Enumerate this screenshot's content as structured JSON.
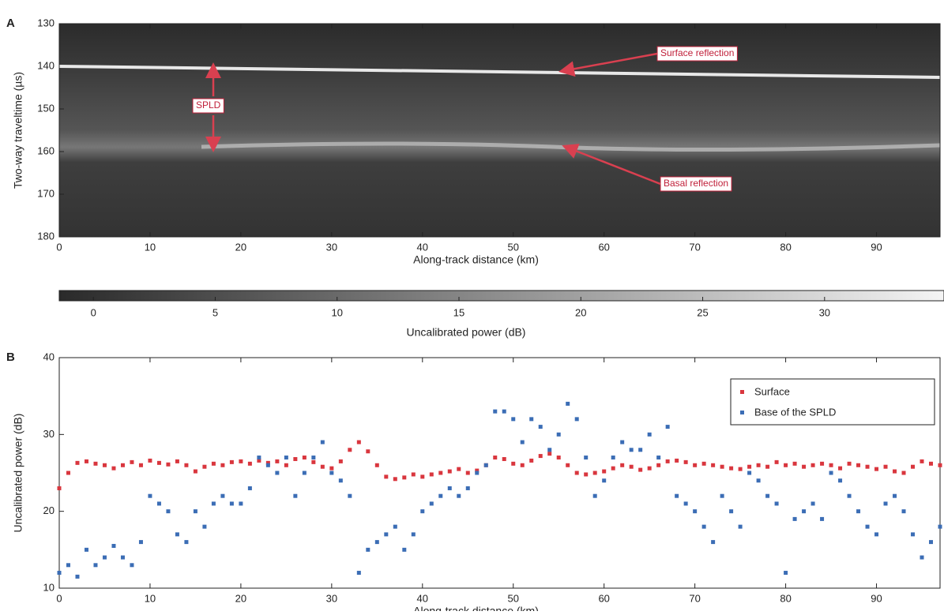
{
  "chart_data": [
    {
      "type": "heatmap",
      "panel_label": "A",
      "xlabel": "Along-track distance (km)",
      "ylabel": "Two-way traveltime (µs)",
      "xlim": [
        0,
        97
      ],
      "xticks": [
        0,
        10,
        20,
        30,
        40,
        50,
        60,
        70,
        80,
        90
      ],
      "ylim": [
        130,
        180
      ],
      "yticks": [
        130,
        140,
        150,
        160,
        170,
        180
      ],
      "y_inverted": true,
      "annotations": [
        "Surface reflection",
        "Basal reflection",
        "SPLD"
      ],
      "colorbar": {
        "label": "Uncalibrated power (dB)",
        "lim": [
          -1.4,
          34.9
        ],
        "ticks": [
          0,
          5,
          10,
          15,
          20,
          25,
          30
        ]
      }
    },
    {
      "type": "scatter",
      "panel_label": "B",
      "xlabel": "Along-track distance (km)",
      "ylabel": "Uncalibrated power (dB)",
      "xlim": [
        0,
        97
      ],
      "xticks": [
        0,
        10,
        20,
        30,
        40,
        50,
        60,
        70,
        80,
        90
      ],
      "ylim": [
        10,
        40
      ],
      "yticks": [
        10,
        20,
        30,
        40
      ],
      "legend": "upper right",
      "x": [
        0,
        1,
        2,
        3,
        4,
        5,
        6,
        7,
        8,
        9,
        10,
        11,
        12,
        13,
        14,
        15,
        16,
        17,
        18,
        19,
        20,
        21,
        22,
        23,
        24,
        25,
        26,
        27,
        28,
        29,
        30,
        31,
        32,
        33,
        34,
        35,
        36,
        37,
        38,
        39,
        40,
        41,
        42,
        43,
        44,
        45,
        46,
        47,
        48,
        49,
        50,
        51,
        52,
        53,
        54,
        55,
        56,
        57,
        58,
        59,
        60,
        61,
        62,
        63,
        64,
        65,
        66,
        67,
        68,
        69,
        70,
        71,
        72,
        73,
        74,
        75,
        76,
        77,
        78,
        79,
        80,
        81,
        82,
        83,
        84,
        85,
        86,
        87,
        88,
        89,
        90,
        91,
        92,
        93,
        94,
        95,
        96,
        97
      ],
      "series": [
        {
          "name": "Surface",
          "color": "#d9363e",
          "values": [
            23,
            25,
            26.3,
            26.5,
            26.2,
            26,
            25.6,
            26,
            26.4,
            26,
            26.6,
            26.3,
            26.1,
            26.5,
            26,
            25.2,
            25.8,
            26.2,
            26,
            26.4,
            26.5,
            26.2,
            26.6,
            26.3,
            26.5,
            26,
            26.8,
            27,
            26.4,
            25.8,
            25.6,
            26.5,
            28,
            29,
            27.8,
            26,
            24.5,
            24.2,
            24.4,
            24.8,
            24.5,
            24.8,
            25,
            25.2,
            25.5,
            25,
            25.3,
            26,
            27,
            26.8,
            26.2,
            26,
            26.6,
            27.2,
            27.5,
            27,
            26,
            25,
            24.8,
            25,
            25.2,
            25.6,
            26,
            25.8,
            25.4,
            25.6,
            26,
            26.5,
            26.6,
            26.4,
            26,
            26.2,
            26,
            25.8,
            25.6,
            25.5,
            25.8,
            26,
            25.8,
            26.4,
            26,
            26.2,
            25.8,
            26,
            26.2,
            26,
            25.6,
            26.2,
            26,
            25.8,
            25.5,
            25.8,
            25.2,
            25,
            25.8,
            26.5,
            26.2,
            26
          ]
        },
        {
          "name": "Base of the SPLD",
          "color": "#3b6db5",
          "values": [
            12,
            13,
            11.5,
            15,
            13,
            14,
            15.5,
            14,
            13,
            16,
            22,
            21,
            20,
            17,
            16,
            20,
            18,
            21,
            22,
            21,
            21,
            23,
            27,
            26,
            25,
            27,
            22,
            25,
            27,
            29,
            25,
            24,
            22,
            12,
            15,
            16,
            17,
            18,
            15,
            17,
            20,
            21,
            22,
            23,
            22,
            23,
            25,
            26,
            33,
            33,
            32,
            29,
            32,
            31,
            28,
            30,
            34,
            32,
            27,
            22,
            24,
            27,
            29,
            28,
            28,
            30,
            27,
            31,
            22,
            21,
            20,
            18,
            16,
            22,
            20,
            18,
            25,
            24,
            22,
            21,
            12,
            19,
            20,
            21,
            19,
            25,
            24,
            22,
            20,
            18,
            17,
            21,
            22,
            20,
            17,
            14,
            16,
            18
          ]
        }
      ]
    }
  ]
}
